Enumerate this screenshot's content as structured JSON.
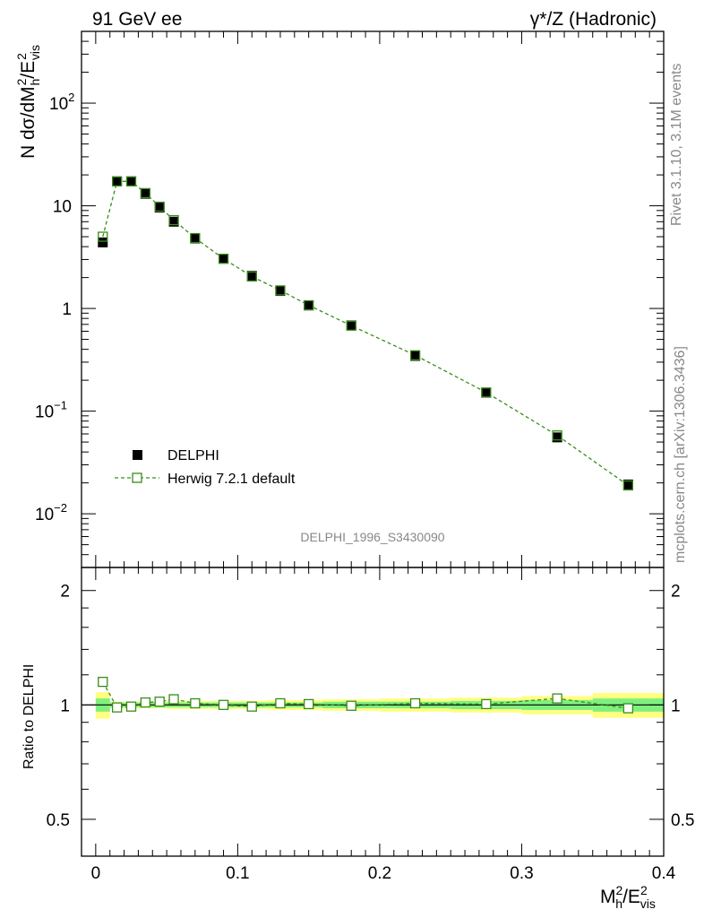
{
  "header": {
    "left_label": "91 GeV ee",
    "right_label": "γ*/Z (Hadronic)"
  },
  "side_text": {
    "rivet": "Rivet 3.1.10,  3.1M events",
    "mcplots": "mcplots.cern.ch [arXiv:1306.3436]"
  },
  "analysis_label": "DELPHI_1996_S3430090",
  "main_axis": {
    "ylabel_main": "N dσ/dM",
    "ylabel_sub_h": "h",
    "ylabel_sup_2": "2",
    "ylabel_div": "/E",
    "ylabel_sub_vis": "vis",
    "ylabel_sup_2b": "2",
    "ytick_labels": [
      {
        "base": "10",
        "exp": "−2",
        "value": 0.01
      },
      {
        "base": "10",
        "exp": "−1",
        "value": 0.1
      },
      {
        "base": "1",
        "exp": "",
        "value": 1
      },
      {
        "base": "10",
        "exp": "",
        "value": 10
      },
      {
        "base": "10",
        "exp": "2",
        "value": 100
      }
    ]
  },
  "ratio_axis": {
    "ylabel": "Ratio to DELPHI",
    "ytick_labels": [
      "0.5",
      "1",
      "2"
    ]
  },
  "x_axis": {
    "label_main": "M",
    "label_sub_h": "h",
    "label_sup_2": "2",
    "label_div": "/E",
    "label_sub_vis": "vis",
    "label_sup_2b": "2",
    "tick_labels": [
      "0",
      "0.1",
      "0.2",
      "0.3",
      "0.4"
    ]
  },
  "legend": {
    "data_label": "DELPHI",
    "mc_label": "Herwig 7.2.1 default"
  },
  "colors": {
    "data": "#000000",
    "mc": "#3a8c1a",
    "band_inner": "#7ff07f",
    "band_outer": "#ffff80"
  },
  "chart_data": {
    "type": "scatter",
    "x": [
      0.005,
      0.015,
      0.025,
      0.035,
      0.045,
      0.055,
      0.07,
      0.09,
      0.11,
      0.13,
      0.15,
      0.18,
      0.225,
      0.275,
      0.325,
      0.375
    ],
    "x_edges": [
      0.0,
      0.01,
      0.02,
      0.03,
      0.04,
      0.05,
      0.06,
      0.08,
      0.1,
      0.12,
      0.14,
      0.16,
      0.2,
      0.25,
      0.3,
      0.35,
      0.4
    ],
    "series": [
      {
        "name": "DELPHI",
        "values": [
          4.4,
          17.3,
          17.3,
          13.1,
          9.6,
          7.0,
          4.8,
          3.05,
          2.08,
          1.48,
          1.07,
          0.685,
          0.345,
          0.151,
          0.0555,
          0.0193
        ]
      },
      {
        "name": "Herwig 7.2.1 default",
        "values": [
          5.0,
          17.3,
          17.3,
          13.3,
          9.8,
          7.25,
          4.85,
          3.05,
          2.05,
          1.5,
          1.075,
          0.68,
          0.35,
          0.152,
          0.058,
          0.0189
        ]
      }
    ],
    "ratio": {
      "values": [
        1.15,
        0.985,
        0.99,
        1.015,
        1.02,
        1.035,
        1.01,
        1.0,
        0.99,
        1.01,
        1.005,
        0.995,
        1.01,
        1.005,
        1.04,
        0.98
      ],
      "stat_band": [
        0.04,
        0.015,
        0.015,
        0.015,
        0.015,
        0.015,
        0.015,
        0.015,
        0.015,
        0.015,
        0.015,
        0.02,
        0.02,
        0.025,
        0.03,
        0.04
      ],
      "total_band": [
        0.08,
        0.02,
        0.02,
        0.02,
        0.02,
        0.025,
        0.025,
        0.025,
        0.025,
        0.03,
        0.03,
        0.035,
        0.04,
        0.045,
        0.055,
        0.075
      ]
    },
    "xlabel": "M_h^2/E_vis^2",
    "ylabel": "N dσ/dM_h^2/E_vis^2",
    "xlim": [
      -0.01,
      0.4
    ],
    "ylim": [
      0.003,
      500
    ],
    "ratio_ylim": [
      0.4,
      2.3
    ],
    "yscale": "log"
  }
}
